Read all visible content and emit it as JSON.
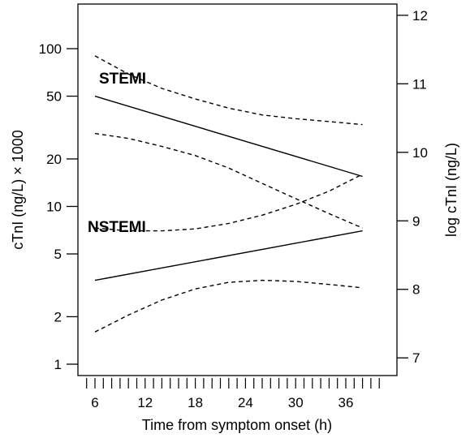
{
  "chart_data": {
    "type": "line",
    "xlabel": "Time from symptom onset (h)",
    "ylabel_left": "cTnI (ng/L) × 1000",
    "ylabel_right": "log cTnI (ng/L)",
    "x_ticks": [
      6,
      12,
      18,
      24,
      30,
      36
    ],
    "x_minor_ticks": [
      5,
      6,
      7,
      8,
      9,
      10,
      11,
      12,
      13,
      14,
      15,
      16,
      17,
      18,
      19,
      20,
      21,
      22,
      23,
      24,
      25,
      26,
      27,
      28,
      29,
      30,
      31,
      32,
      33,
      34,
      35,
      36,
      37,
      38,
      39,
      40
    ],
    "xlim": [
      2,
      41.5
    ],
    "y_left_ticks": [
      1,
      2,
      5,
      10,
      20,
      50,
      100
    ],
    "y_right_ticks": [
      7,
      8,
      9,
      10,
      11,
      12
    ],
    "y_scale_left": "log",
    "y_right_unit": "natural log of cTnI (ng/L)",
    "ylim_left": [
      0.8,
      200
    ],
    "series": [
      {
        "name": "STEMI",
        "style": "solid",
        "x": [
          6,
          38
        ],
        "y": [
          50,
          15.5
        ]
      },
      {
        "name": "",
        "style": "dashed",
        "x": [
          6,
          10,
          14,
          18,
          22,
          26,
          30,
          34,
          38
        ],
        "y": [
          90,
          69,
          56,
          48,
          42,
          38,
          36,
          34.5,
          33
        ]
      },
      {
        "name": "",
        "style": "dashed",
        "x": [
          6,
          10,
          14,
          18,
          22,
          26,
          30,
          34,
          38
        ],
        "y": [
          29,
          27,
          24,
          21,
          17.5,
          14,
          11.2,
          9,
          7.3
        ]
      },
      {
        "name": "NSTEMI",
        "style": "solid",
        "x": [
          6,
          38
        ],
        "y": [
          3.4,
          7
        ]
      },
      {
        "name": "",
        "style": "dashed",
        "x": [
          6,
          10,
          14,
          18,
          22,
          26,
          30,
          34,
          38
        ],
        "y": [
          7.3,
          7,
          7,
          7.2,
          7.8,
          8.8,
          10.3,
          12.5,
          16
        ]
      },
      {
        "name": "",
        "style": "dashed",
        "x": [
          6,
          10,
          14,
          18,
          22,
          26,
          30,
          34,
          38
        ],
        "y": [
          1.6,
          2.05,
          2.55,
          3,
          3.3,
          3.4,
          3.35,
          3.2,
          3.05
        ]
      }
    ],
    "annotations": [
      "STEMI",
      "NSTEMI"
    ],
    "grid": false,
    "legend": "none"
  }
}
